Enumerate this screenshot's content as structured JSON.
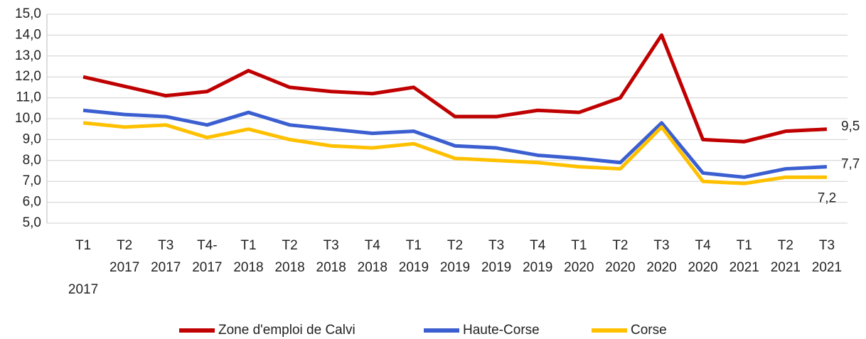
{
  "chart_data": {
    "type": "line",
    "categories": [
      "T1 2017",
      "T2 2017",
      "T3 2017",
      "T4-2017",
      "T1 2018",
      "T2 2018",
      "T3 2018",
      "T4 2018",
      "T1 2019",
      "T2 2019",
      "T3 2019",
      "T4 2019",
      "T1 2020",
      "T2 2020",
      "T3 2020",
      "T4 2020",
      "T1 2021",
      "T2 2021",
      "T3 2021"
    ],
    "series": [
      {
        "name": "Zone d'emploi de Calvi",
        "color": "#c00000",
        "values": [
          12.0,
          11.55,
          11.1,
          11.3,
          12.3,
          11.5,
          11.3,
          11.2,
          11.5,
          10.1,
          10.1,
          10.4,
          10.3,
          11.0,
          14.0,
          9.0,
          8.9,
          9.4,
          9.5
        ],
        "value_labels": [
          null,
          null,
          null,
          null,
          null,
          null,
          null,
          null,
          null,
          null,
          null,
          null,
          null,
          null,
          null,
          null,
          null,
          null,
          "9,5"
        ]
      },
      {
        "name": "Haute-Corse",
        "color": "#3b5fd0",
        "values": [
          10.4,
          10.2,
          10.1,
          9.7,
          10.3,
          9.7,
          9.5,
          9.3,
          9.4,
          8.7,
          8.6,
          8.25,
          8.1,
          7.9,
          9.8,
          7.4,
          7.2,
          7.6,
          7.7
        ],
        "value_labels": [
          null,
          null,
          null,
          null,
          null,
          null,
          null,
          null,
          null,
          null,
          null,
          null,
          null,
          null,
          null,
          null,
          null,
          null,
          "7,7"
        ]
      },
      {
        "name": "Corse",
        "color": "#ffc000",
        "values": [
          9.8,
          9.6,
          9.7,
          9.1,
          9.5,
          9.0,
          8.7,
          8.6,
          8.8,
          8.1,
          8.0,
          7.9,
          7.7,
          7.6,
          9.6,
          7.0,
          6.9,
          7.2,
          7.2
        ],
        "value_labels": [
          null,
          null,
          null,
          null,
          null,
          null,
          null,
          null,
          null,
          null,
          null,
          null,
          null,
          null,
          null,
          null,
          null,
          null,
          "7,2"
        ]
      }
    ],
    "ylim": [
      5,
      15
    ],
    "yticks": [
      {
        "value": 5,
        "label": "5,0"
      },
      {
        "value": 6,
        "label": "6,0"
      },
      {
        "value": 7,
        "label": "7,0"
      },
      {
        "value": 8,
        "label": "8,0"
      },
      {
        "value": 9,
        "label": "9,0"
      },
      {
        "value": 10,
        "label": "10,0"
      },
      {
        "value": 11,
        "label": "11,0"
      },
      {
        "value": 12,
        "label": "12,0"
      },
      {
        "value": 13,
        "label": "13,0"
      },
      {
        "value": 14,
        "label": "14,0"
      },
      {
        "value": 15,
        "label": "15,0"
      }
    ],
    "grid": true,
    "legend": "bottom"
  }
}
